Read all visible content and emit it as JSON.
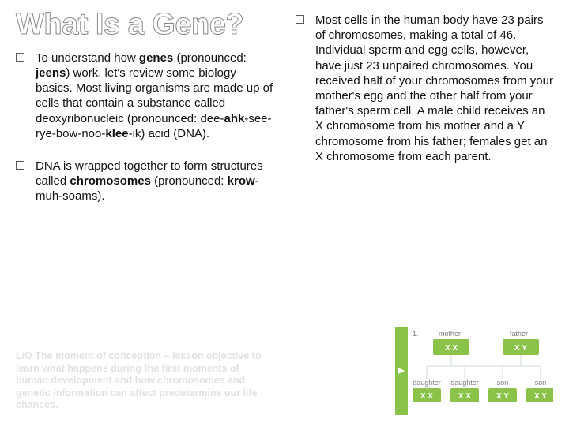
{
  "title": "What Is a Gene?",
  "left_bullets": [
    "To understand how <b>genes</b> (pronounced: <b>jeens</b>) work, let's review some biology basics. Most living organisms are made up of cells that contain a substance called deoxyribonucleic (pronounced: dee-<b>ahk</b>-see-rye-bow-noo-<b>klee</b>-ik) acid (DNA).",
    "DNA is wrapped together to form structures called <b>chromosomes</b> (pronounced: <b>krow</b>-muh-soams)."
  ],
  "right_bullets": [
    "Most cells in the human body have 23 pairs of chromosomes, making a total of 46. Individual sperm and egg cells, however, have just 23 unpaired chromosomes. You received half of your chromosomes from your mother's egg and the other half from your father's sperm cell. A male child receives an X chromosome from his mother and a Y chromosome from his father; females get an X chromosome from each parent."
  ],
  "footer": "L/O The moment of conception – lesson objective to learn what happens during the first moments of human development and how chromosomes and genetic information can affect predetermine our life chances.",
  "diagram": {
    "accent": "#8bc34a",
    "line": "#cfd8dc",
    "box_fill": "#eceff1",
    "text_muted": "#7a7a7a",
    "step1": "1.",
    "mother": {
      "label": "mother",
      "gen": "X X"
    },
    "father": {
      "label": "father",
      "gen": "X Y"
    },
    "children": [
      {
        "label": "daughter",
        "gen": "X X"
      },
      {
        "label": "daughter",
        "gen": "X X"
      },
      {
        "label": "son",
        "gen": "X Y"
      },
      {
        "label": "son",
        "gen": "X Y"
      }
    ]
  }
}
